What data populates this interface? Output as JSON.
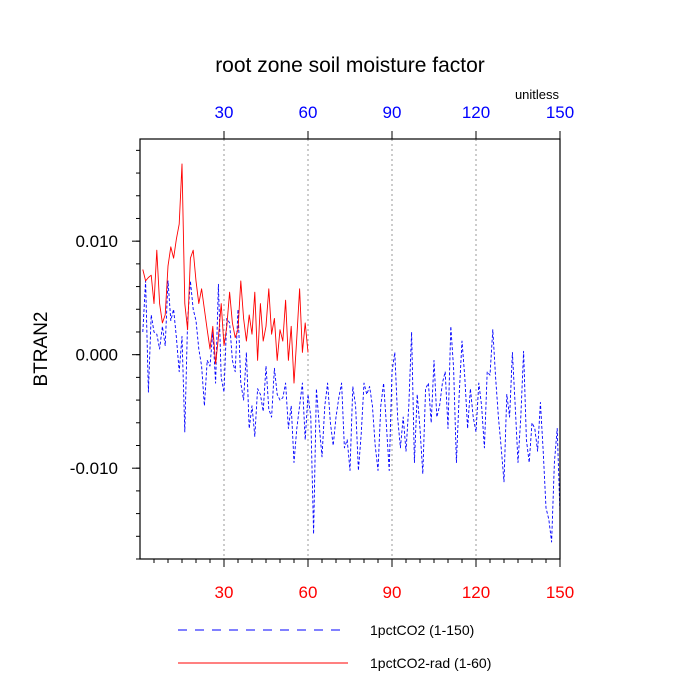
{
  "chart_data": {
    "type": "line",
    "title": "root zone soil moisture factor",
    "units_label": "unitless",
    "ylabel": "BTRAN2",
    "xlabel": "",
    "xlim": [
      0,
      150
    ],
    "ylim": [
      -0.018,
      0.019
    ],
    "x_ticks_bottom": [
      30,
      60,
      90,
      120,
      150
    ],
    "x_ticks_top": [
      30,
      60,
      90,
      120,
      150
    ],
    "y_ticks": [
      {
        "value": 0.01,
        "label": "0.010"
      },
      {
        "value": 0.0,
        "label": "0.000"
      },
      {
        "value": -0.01,
        "label": "-0.010"
      }
    ],
    "y_minor_step": 0.002,
    "x_minor_step": 5,
    "vertical_grid": "dotted at major x ticks",
    "bottom_tick_label_color": "#ff0000",
    "top_tick_label_color": "#0000ff",
    "legend_placement": "bottom",
    "series": [
      {
        "name": "1pctCO2 (1-150)",
        "color": "#0000ff",
        "dash": "dashed",
        "x_start": 1,
        "values": [
          0.002,
          0.0065,
          -0.0033,
          0.0035,
          0.002,
          0.0018,
          0.0005,
          0.0025,
          0.0008,
          0.0065,
          0.003,
          0.004,
          0.0015,
          -0.0015,
          0.0016,
          -0.0068,
          0.003,
          0.0065,
          0.004,
          0.003,
          0.0005,
          -0.001,
          -0.0045,
          -0.0005,
          -0.001,
          0.002,
          -0.0025,
          0.0062,
          -0.002,
          -0.0033,
          0.0032,
          0.0028,
          -0.0005,
          -0.0015,
          0.004,
          -0.0025,
          -0.004,
          0.0002,
          -0.0065,
          -0.0045,
          -0.0072,
          -0.003,
          -0.0035,
          -0.005,
          -0.001,
          -0.0048,
          -0.0055,
          -0.0012,
          -0.0035,
          -0.004,
          -0.0038,
          -0.0025,
          -0.0065,
          -0.0045,
          -0.0095,
          -0.0065,
          -0.0045,
          -0.0025,
          -0.0075,
          -0.0035,
          -0.0055,
          -0.0158,
          -0.003,
          -0.0062,
          -0.009,
          -0.0045,
          -0.0025,
          -0.006,
          -0.008,
          -0.0055,
          -0.0038,
          -0.0025,
          -0.0082,
          -0.0075,
          -0.0102,
          -0.0028,
          -0.0045,
          -0.0102,
          -0.007,
          -0.0025,
          -0.0035,
          -0.0028,
          -0.0045,
          -0.008,
          -0.0102,
          -0.0045,
          -0.0025,
          -0.0062,
          -0.0102,
          -0.0015,
          0.0002,
          -0.0055,
          -0.0082,
          -0.0055,
          -0.0085,
          -0.0045,
          0.002,
          -0.0095,
          -0.0035,
          -0.0065,
          -0.0105,
          -0.003,
          -0.0025,
          -0.006,
          -0.0005,
          -0.0055,
          -0.0045,
          -0.0025,
          -0.0015,
          -0.0065,
          0.0025,
          -0.0012,
          -0.0095,
          -0.0035,
          0.0012,
          -0.002,
          -0.0065,
          -0.003,
          -0.0055,
          -0.0068,
          -0.0025,
          -0.0045,
          -0.0082,
          -0.0015,
          -0.0018,
          0.0022,
          -0.002,
          -0.0055,
          -0.0082,
          -0.0112,
          -0.0035,
          -0.0055,
          0.0002,
          -0.0045,
          -0.0095,
          -0.0055,
          0.0003,
          -0.0075,
          -0.0095,
          -0.006,
          -0.0065,
          -0.0085,
          -0.0042,
          -0.0085,
          -0.0135,
          -0.0145,
          -0.0165,
          -0.0095,
          -0.0065,
          -0.014
        ]
      },
      {
        "name": "1pctCO2-rad (1-60)",
        "color": "#ff0000",
        "dash": "solid",
        "x_start": 1,
        "values": [
          0.0075,
          0.0065,
          0.0068,
          0.007,
          0.0045,
          0.0092,
          0.0045,
          0.0028,
          0.0035,
          0.0078,
          0.0095,
          0.0085,
          0.0102,
          0.0115,
          0.0168,
          0.0045,
          0.0022,
          0.0085,
          0.0092,
          0.0065,
          0.0045,
          0.0058,
          0.004,
          0.0022,
          0.0005,
          0.0025,
          -0.0008,
          0.0015,
          0.0045,
          0.0008,
          0.0025,
          0.0055,
          0.0028,
          0.0015,
          0.0022,
          0.0065,
          0.0032,
          0.0012,
          0.0035,
          0.0018,
          0.0055,
          -0.0005,
          0.0045,
          0.0012,
          0.0025,
          0.0058,
          0.0018,
          0.0032,
          -0.0005,
          0.0022,
          0.0012,
          0.0048,
          -0.0005,
          0.0025,
          -0.0025,
          0.0015,
          0.0058,
          0.0002,
          0.0028,
          0.0002
        ]
      }
    ]
  }
}
